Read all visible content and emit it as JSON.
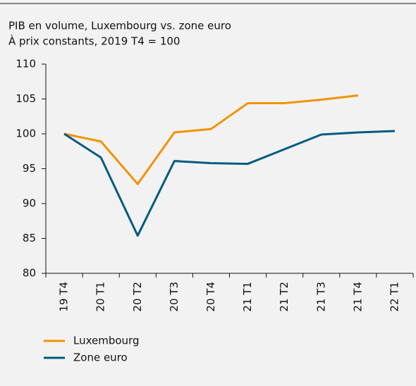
{
  "chart_data": {
    "type": "line",
    "title": "PIB en volume, Luxembourg vs. zone euro",
    "subtitle": "À prix constants, 2019 T4 = 100",
    "categories": [
      "19 T4",
      "20 T1",
      "20 T2",
      "20 T3",
      "20 T4",
      "21 T1",
      "21 T2",
      "21 T3",
      "21 T4",
      "22 T1"
    ],
    "series": [
      {
        "name": "Luxembourg",
        "color": "#f39200",
        "values": [
          100,
          98.9,
          92.8,
          100.2,
          100.7,
          104.4,
          104.4,
          104.9,
          105.5,
          null
        ]
      },
      {
        "name": "Zone euro",
        "color": "#005b82",
        "values": [
          100,
          96.6,
          85.4,
          96.1,
          95.8,
          95.7,
          97.8,
          99.9,
          100.2,
          100.4
        ]
      }
    ],
    "ylim": [
      80,
      110
    ],
    "yticks": [
      80,
      85,
      90,
      95,
      100,
      105,
      110
    ],
    "grid": false,
    "legend": "bottom-left"
  }
}
